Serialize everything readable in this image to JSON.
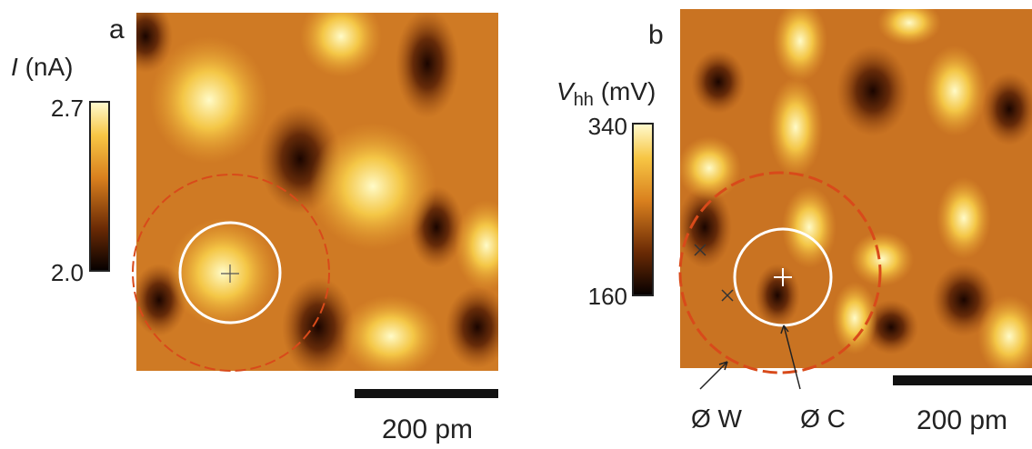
{
  "panels": [
    {
      "label": "a",
      "colorbar": {
        "symbol": "I",
        "unit": "(nA)",
        "max": "2.7",
        "min": "2.0"
      },
      "scale_bar": "200 pm"
    },
    {
      "label": "b",
      "colorbar": {
        "symbol": "V",
        "subscript": "hh",
        "unit": "(mV)",
        "max": "340",
        "min": "160"
      },
      "scale_bar": "200 pm",
      "annotations": [
        "Ø W",
        "Ø C"
      ]
    }
  ]
}
